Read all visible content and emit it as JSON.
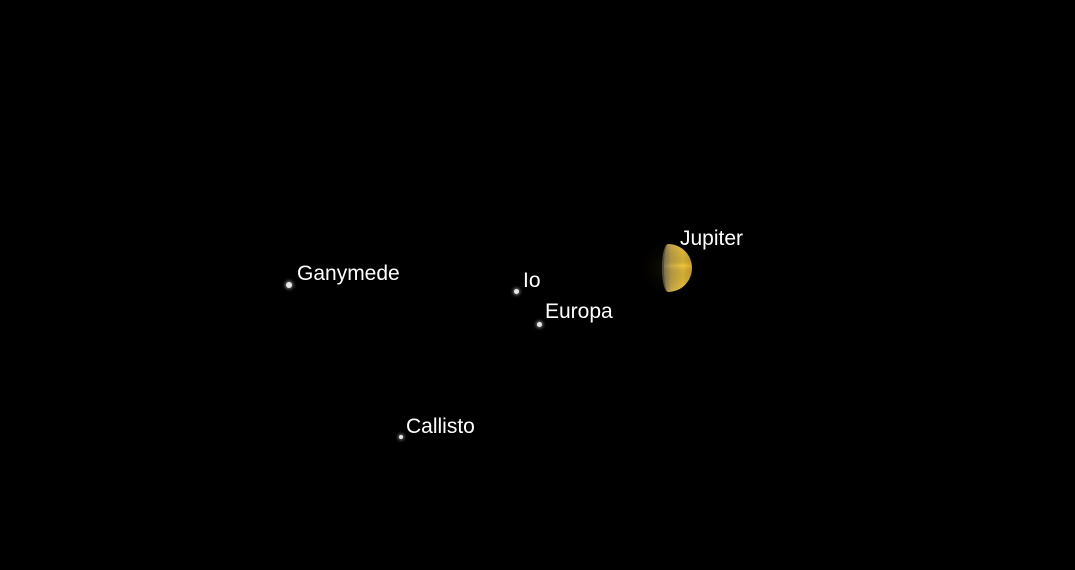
{
  "bodies": {
    "jupiter": {
      "label": "Jupiter",
      "color": "#e8c23a"
    },
    "ganymede": {
      "label": "Ganymede"
    },
    "io": {
      "label": "Io"
    },
    "europa": {
      "label": "Europa"
    },
    "callisto": {
      "label": "Callisto"
    }
  },
  "colors": {
    "background": "#000000",
    "label": "#ffffff",
    "moon": "#e8e8e8"
  }
}
